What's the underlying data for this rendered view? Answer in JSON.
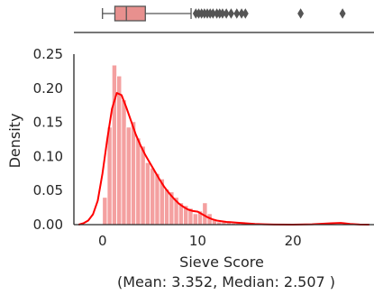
{
  "chart_data": {
    "type": "histogram",
    "title": "",
    "xlabel": "Sieve Score",
    "xlabel_note": "(Mean: 3.352, Median: 2.507 )",
    "ylabel": "Density",
    "xlim": [
      -3,
      28.5
    ],
    "ylim": [
      0,
      0.25
    ],
    "x_ticks": [
      "0",
      "10",
      "20"
    ],
    "x_tick_values": [
      0,
      10,
      20
    ],
    "y_ticks": [
      "0.00",
      "0.05",
      "0.10",
      "0.15",
      "0.20",
      "0.25"
    ],
    "y_tick_values": [
      0,
      0.05,
      0.1,
      0.15,
      0.2,
      0.25
    ],
    "histogram": {
      "color": "#f08080",
      "bin_edges": [
        0,
        0.5,
        1,
        1.5,
        2,
        2.5,
        3,
        3.5,
        4,
        4.5,
        5,
        5.5,
        6,
        6.5,
        7,
        7.5,
        8,
        8.5,
        9,
        9.5,
        10,
        10.5,
        11,
        11.5,
        12,
        12.5,
        13,
        13.5,
        14,
        14.5,
        15
      ],
      "densities": [
        0.04,
        0.143,
        0.234,
        0.218,
        0.183,
        0.143,
        0.151,
        0.127,
        0.115,
        0.091,
        0.083,
        0.075,
        0.067,
        0.052,
        0.048,
        0.04,
        0.032,
        0.028,
        0.024,
        0.016,
        0.02,
        0.032,
        0.016,
        0.008,
        0.004,
        0.004,
        0.004,
        0.002,
        0.002,
        0.004
      ]
    },
    "kde": {
      "color": "#ff0000",
      "x": [
        -2.5,
        -2,
        -1.5,
        -1,
        -0.5,
        0,
        0.5,
        1,
        1.5,
        2,
        2.5,
        3,
        3.5,
        4,
        4.5,
        5,
        5.5,
        6,
        6.5,
        7,
        7.5,
        8,
        8.5,
        9,
        9.5,
        10,
        10.5,
        11,
        11.5,
        12,
        13,
        14,
        15,
        16,
        17,
        18,
        20,
        22,
        24,
        25,
        26,
        27,
        28
      ],
      "y": [
        0.0,
        0.002,
        0.006,
        0.015,
        0.035,
        0.075,
        0.125,
        0.17,
        0.193,
        0.19,
        0.172,
        0.152,
        0.132,
        0.116,
        0.102,
        0.09,
        0.078,
        0.066,
        0.055,
        0.046,
        0.038,
        0.031,
        0.026,
        0.022,
        0.02,
        0.019,
        0.015,
        0.011,
        0.008,
        0.006,
        0.004,
        0.003,
        0.002,
        0.001,
        0.0005,
        0.0002,
        0.0,
        0.0005,
        0.002,
        0.0025,
        0.001,
        0.0002,
        0.0
      ]
    },
    "boxplot": {
      "color": "#e8908e",
      "min": 0,
      "q1": 1.3,
      "median": 2.507,
      "mean": 3.352,
      "q3": 4.5,
      "whisker_high": 9.3,
      "outliers": [
        9.8,
        10.1,
        10.4,
        10.7,
        11.0,
        11.3,
        11.6,
        12.0,
        12.3,
        12.6,
        13.0,
        13.5,
        14.1,
        14.6,
        15.0,
        20.8,
        25.2
      ]
    }
  }
}
